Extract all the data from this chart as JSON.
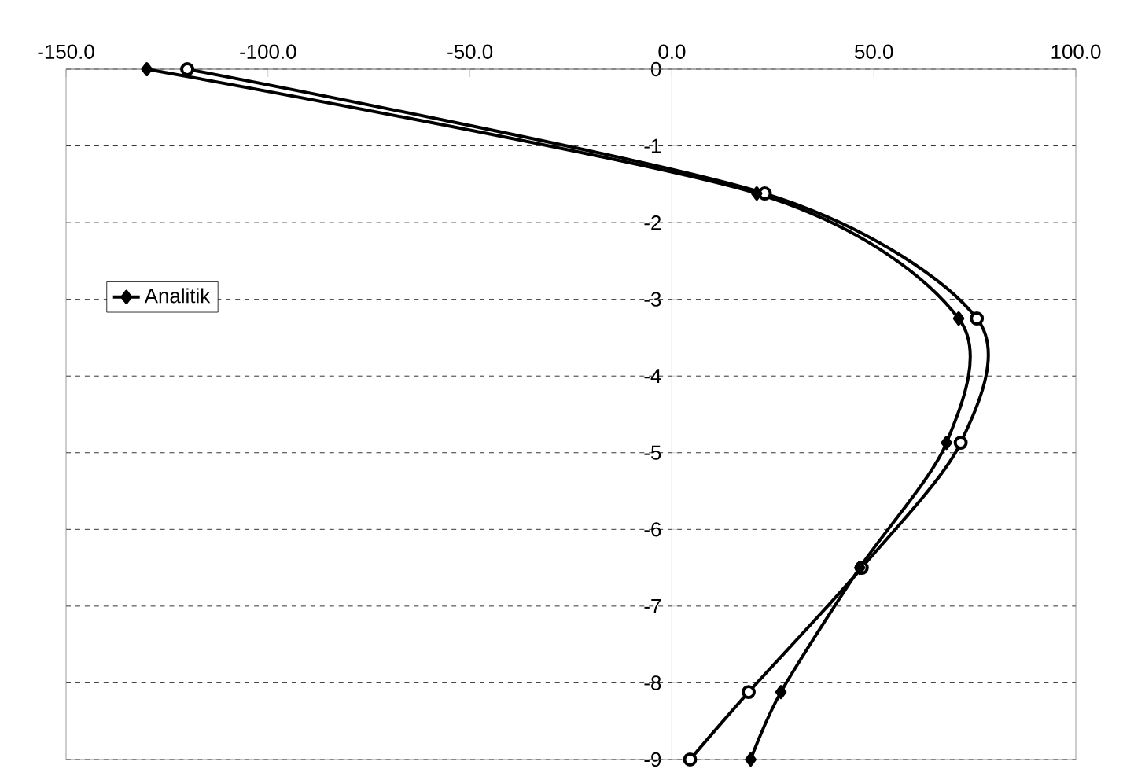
{
  "chart_data": {
    "type": "line",
    "xlim": [
      -150,
      100
    ],
    "xticks": [
      {
        "value": -150,
        "label": "-150.0"
      },
      {
        "value": -100,
        "label": "-100.0"
      },
      {
        "value": -50,
        "label": "-50.0"
      },
      {
        "value": 0,
        "label": "0.0"
      },
      {
        "value": 50,
        "label": "50.0"
      },
      {
        "value": 100,
        "label": "100.0"
      }
    ],
    "ylim": [
      -9,
      0
    ],
    "yticks": [
      0,
      -1,
      -2,
      -3,
      -4,
      -5,
      -6,
      -7,
      -8,
      -9
    ],
    "grid": "y",
    "legend": "left",
    "series": [
      {
        "name": "Analitik",
        "color": "#000000",
        "marker": "diamond",
        "x": [
          -130,
          21,
          71,
          68,
          46.5,
          27,
          19.5
        ],
        "values": [
          0,
          -1.62,
          -3.25,
          -4.87,
          -6.5,
          -8.12,
          -9
        ]
      },
      {
        "color": "#000000",
        "marker": "circle",
        "x": [
          -120,
          23,
          75.5,
          71.5,
          47,
          19,
          4.5
        ],
        "values": [
          0,
          -1.62,
          -3.25,
          -4.87,
          -6.5,
          -8.12,
          -9
        ]
      }
    ]
  }
}
